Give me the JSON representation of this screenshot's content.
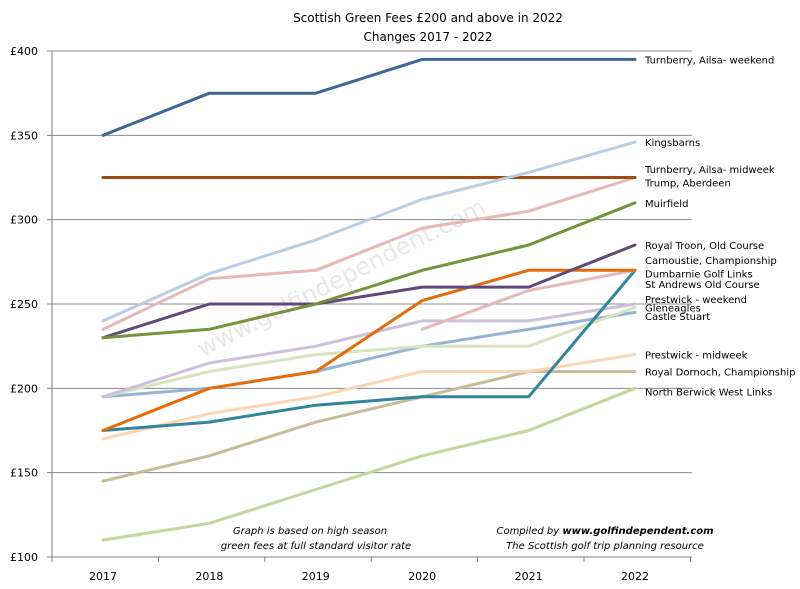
{
  "chart_data": {
    "type": "line",
    "title": "Scottish Green Fees £200 and above in 2022",
    "subtitle": "Changes 2017 - 2022",
    "xlabel": "",
    "ylabel": "",
    "x": [
      "2017",
      "2018",
      "2019",
      "2020",
      "2021",
      "2022"
    ],
    "ylim": [
      100,
      400
    ],
    "ytick_values": [
      100,
      150,
      200,
      250,
      300,
      350,
      400
    ],
    "ytick_labels": [
      "£100",
      "£150",
      "£200",
      "£250",
      "£300",
      "£350",
      "£400"
    ],
    "grid": "horizontal",
    "series": [
      {
        "name": "Turnberry, Ailsa- weekend",
        "color": "#3f6796",
        "values": [
          350,
          375,
          375,
          395,
          395,
          395
        ]
      },
      {
        "name": "Kingsbarns",
        "color": "#b9cde4",
        "values": [
          240,
          268,
          288,
          312,
          328,
          346
        ]
      },
      {
        "name": "Turnberry, Ailsa- midweek",
        "color": "#9c4b13",
        "values": [
          325,
          325,
          325,
          325,
          325,
          325
        ]
      },
      {
        "name": "Trump, Aberdeen",
        "color": "#e6b9b8",
        "values": [
          235,
          265,
          270,
          295,
          305,
          325
        ]
      },
      {
        "name": "Muirfield",
        "color": "#76923c",
        "values": [
          230,
          235,
          250,
          270,
          285,
          310
        ]
      },
      {
        "name": "Royal Troon, Old Course",
        "color": "#604a7b",
        "values": [
          230,
          250,
          250,
          260,
          260,
          285
        ]
      },
      {
        "name": "Carnoustie, Championship",
        "color": "#e46c0a",
        "values": [
          175,
          200,
          210,
          252,
          270,
          270
        ]
      },
      {
        "name": "Dumbarnie Golf Links",
        "color": "#e6b9b8",
        "values": [
          null,
          null,
          null,
          235,
          258,
          270
        ]
      },
      {
        "name": "St Andrews Old Course",
        "color": "#31859c",
        "values": [
          175,
          180,
          190,
          195,
          195,
          270
        ]
      },
      {
        "name": "Prestwick - weekend",
        "color": "#ccc0da",
        "values": [
          195,
          215,
          225,
          240,
          240,
          250
        ]
      },
      {
        "name": "Gleneagles",
        "color": "#d7e4bd",
        "values": [
          195,
          210,
          220,
          225,
          225,
          248
        ]
      },
      {
        "name": "Castle Stuart",
        "color": "#95b3d7",
        "values": [
          195,
          200,
          210,
          225,
          235,
          245
        ]
      },
      {
        "name": "Prestwick - midweek",
        "color": "#fcd5b5",
        "values": [
          170,
          185,
          195,
          210,
          210,
          220
        ]
      },
      {
        "name": "Royal Dornoch, Championship",
        "color": "#c4bd97",
        "values": [
          145,
          160,
          180,
          195,
          210,
          210
        ]
      },
      {
        "name": "North Berwick West Links",
        "color": "#c3d69b",
        "values": [
          110,
          120,
          140,
          160,
          175,
          200
        ]
      }
    ],
    "series_label_y": [
      395,
      346,
      330,
      322,
      310,
      285,
      276,
      268,
      262,
      253,
      248,
      243,
      220,
      210,
      198
    ],
    "annotations": {
      "left_line1": "Graph is based on high season",
      "left_line2": "green fees at full standard visitor rate",
      "right_line1_prefix": "Compiled by ",
      "right_line1_site": "www.golfindependent.com",
      "right_line2": "The Scottish golf trip planning resource"
    },
    "watermark": "www.golfindependent.com"
  }
}
